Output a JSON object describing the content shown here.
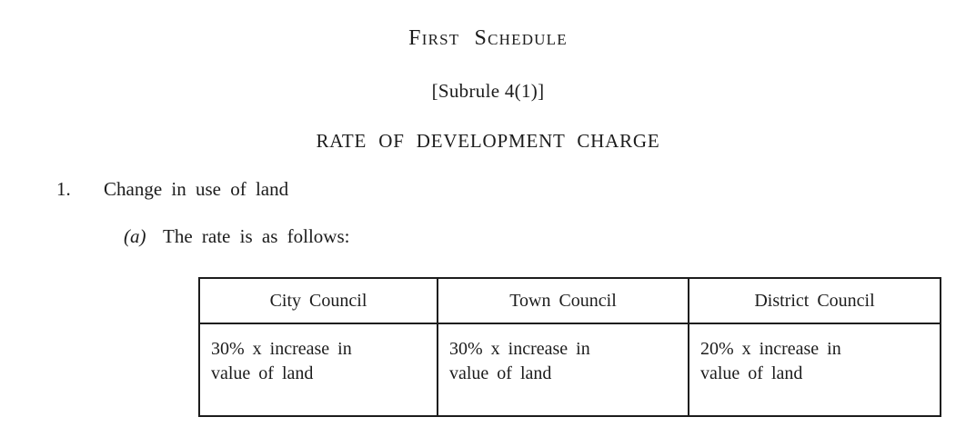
{
  "document": {
    "schedule_title": "First Schedule",
    "subrule": "[Subrule 4(1)]",
    "heading": "RATE OF DEVELOPMENT CHARGE",
    "item": {
      "number": "1.",
      "text": "Change in use of land"
    },
    "sub_item": {
      "label": "(a)",
      "text": "The rate is as follows:"
    },
    "table": {
      "headers": [
        "City Council",
        "Town Council",
        "District Council"
      ],
      "cells": [
        {
          "lines": [
            "30% x increase in",
            "value of land"
          ]
        },
        {
          "lines": [
            "30% x increase in",
            "value of land"
          ]
        },
        {
          "lines": [
            "20% x increase in",
            "value of land"
          ]
        }
      ]
    },
    "colors": {
      "background": "#ffffff",
      "text": "#1c1c1c",
      "table_border": "#1c1c1c"
    }
  }
}
